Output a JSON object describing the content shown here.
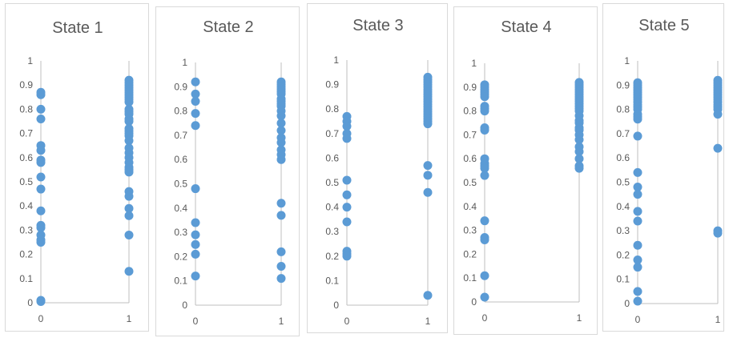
{
  "chart_data": [
    {
      "type": "scatter",
      "title": "State 1",
      "xlabel": "",
      "ylabel": "",
      "xlim": [
        0,
        1
      ],
      "ylim": [
        0,
        1
      ],
      "x_ticks": [
        "0",
        "1"
      ],
      "y_ticks": [
        "0",
        "0.1",
        "0.2",
        "0.3",
        "0.4",
        "0.5",
        "0.6",
        "0.7",
        "0.8",
        "0.9",
        "1"
      ],
      "grid": false,
      "points": {
        "x0": [
          0.87,
          0.86,
          0.8,
          0.76,
          0.65,
          0.63,
          0.59,
          0.58,
          0.52,
          0.47,
          0.38,
          0.32,
          0.31,
          0.28,
          0.26,
          0.25,
          0.01,
          0.005
        ],
        "x1": [
          0.92,
          0.91,
          0.9,
          0.89,
          0.88,
          0.87,
          0.86,
          0.85,
          0.84,
          0.83,
          0.8,
          0.79,
          0.78,
          0.76,
          0.75,
          0.72,
          0.71,
          0.7,
          0.69,
          0.67,
          0.64,
          0.62,
          0.6,
          0.58,
          0.56,
          0.55,
          0.54,
          0.46,
          0.44,
          0.39,
          0.36,
          0.28,
          0.13
        ]
      }
    },
    {
      "type": "scatter",
      "title": "State 2",
      "xlabel": "",
      "ylabel": "",
      "xlim": [
        0,
        1
      ],
      "ylim": [
        0,
        1
      ],
      "x_ticks": [
        "0",
        "1"
      ],
      "y_ticks": [
        "0",
        "0.1",
        "0.2",
        "0.3",
        "0.4",
        "0.5",
        "0.6",
        "0.7",
        "0.8",
        "0.9",
        "1"
      ],
      "grid": false,
      "points": {
        "x0": [
          0.92,
          0.87,
          0.84,
          0.79,
          0.74,
          0.48,
          0.34,
          0.29,
          0.25,
          0.21,
          0.12
        ],
        "x1": [
          0.92,
          0.91,
          0.9,
          0.89,
          0.88,
          0.87,
          0.85,
          0.84,
          0.83,
          0.82,
          0.8,
          0.78,
          0.75,
          0.72,
          0.69,
          0.67,
          0.64,
          0.62,
          0.6,
          0.42,
          0.37,
          0.22,
          0.16,
          0.11
        ]
      }
    },
    {
      "type": "scatter",
      "title": "State 3",
      "xlabel": "",
      "ylabel": "",
      "xlim": [
        0,
        1
      ],
      "ylim": [
        0,
        1
      ],
      "x_ticks": [
        "0",
        "1"
      ],
      "y_ticks": [
        "0",
        "0.1",
        "0.2",
        "0.3",
        "0.4",
        "0.5",
        "0.6",
        "0.7",
        "0.8",
        "0.9",
        "1"
      ],
      "grid": false,
      "points": {
        "x0": [
          0.77,
          0.75,
          0.73,
          0.7,
          0.68,
          0.51,
          0.45,
          0.4,
          0.34,
          0.22,
          0.21,
          0.2
        ],
        "x1": [
          0.93,
          0.92,
          0.91,
          0.9,
          0.89,
          0.88,
          0.87,
          0.86,
          0.85,
          0.84,
          0.83,
          0.82,
          0.81,
          0.8,
          0.79,
          0.78,
          0.77,
          0.76,
          0.75,
          0.74,
          0.57,
          0.53,
          0.46,
          0.04
        ]
      }
    },
    {
      "type": "scatter",
      "title": "State 4",
      "xlabel": "",
      "ylabel": "",
      "xlim": [
        0,
        1
      ],
      "ylim": [
        0,
        1
      ],
      "x_ticks": [
        "0",
        "1"
      ],
      "y_ticks": [
        "0",
        "0.1",
        "0.2",
        "0.3",
        "0.4",
        "0.5",
        "0.6",
        "0.7",
        "0.8",
        "0.9",
        "1"
      ],
      "grid": false,
      "points": {
        "x0": [
          0.91,
          0.9,
          0.89,
          0.88,
          0.87,
          0.86,
          0.82,
          0.81,
          0.8,
          0.73,
          0.72,
          0.6,
          0.58,
          0.57,
          0.56,
          0.53,
          0.34,
          0.27,
          0.26,
          0.11,
          0.02
        ],
        "x1": [
          0.92,
          0.91,
          0.9,
          0.89,
          0.88,
          0.87,
          0.86,
          0.85,
          0.84,
          0.83,
          0.82,
          0.81,
          0.8,
          0.78,
          0.76,
          0.75,
          0.73,
          0.72,
          0.7,
          0.68,
          0.65,
          0.63,
          0.6,
          0.57,
          0.56
        ]
      }
    },
    {
      "type": "scatter",
      "title": "State 5",
      "xlabel": "",
      "ylabel": "",
      "xlim": [
        0,
        1
      ],
      "ylim": [
        0,
        1
      ],
      "x_ticks": [
        "0",
        "1"
      ],
      "y_ticks": [
        "0",
        "0.1",
        "0.2",
        "0.3",
        "0.4",
        "0.5",
        "0.6",
        "0.7",
        "0.8",
        "0.9",
        "1"
      ],
      "grid": false,
      "points": {
        "x0": [
          0.91,
          0.9,
          0.89,
          0.88,
          0.87,
          0.86,
          0.85,
          0.84,
          0.83,
          0.82,
          0.81,
          0.8,
          0.78,
          0.77,
          0.76,
          0.69,
          0.54,
          0.48,
          0.45,
          0.38,
          0.34,
          0.24,
          0.18,
          0.15,
          0.05,
          0.01
        ],
        "x1": [
          0.92,
          0.91,
          0.9,
          0.89,
          0.88,
          0.87,
          0.86,
          0.85,
          0.84,
          0.83,
          0.82,
          0.81,
          0.8,
          0.78,
          0.64,
          0.3,
          0.29
        ]
      }
    }
  ],
  "style": {
    "marker_color": "#5b9bd5",
    "axis_color": "#bfbfbf",
    "text_color": "#595959",
    "accent_axis_color": "#9dc3e6"
  }
}
